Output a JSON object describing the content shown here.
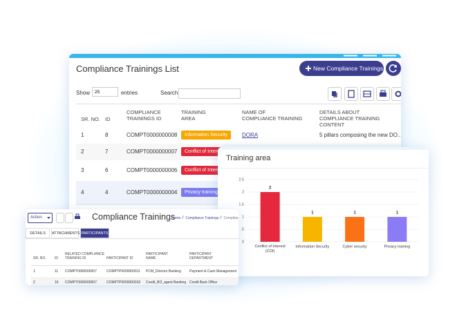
{
  "main_panel": {
    "title": "Compliance Trainings List",
    "new_button": "New Compliance Trainings",
    "show_label": "Show",
    "page_size": "25",
    "entries_label": "entries",
    "search_label": "Search",
    "table": {
      "headers": [
        "SR. NO.",
        "ID",
        "COMPLIANCE\nTRAININGS ID",
        "TRAINING\nAREA",
        "NAME OF\nCOMPLIANCE TRAINING",
        "DETAILS ABOUT\nCOMPLIANCE TRAINING CONTENT"
      ],
      "rows": [
        {
          "sr": 1,
          "id": 8,
          "training_id": "COMPT0000000008",
          "area": "Information Security",
          "name": "DORA",
          "details": "5 pillars composing the new DO..."
        },
        {
          "sr": 2,
          "id": 7,
          "training_id": "COMPT0000000007",
          "area": "Conflict of Interest"
        },
        {
          "sr": 3,
          "id": 6,
          "training_id": "COMPT0000000006",
          "area": "Conflict of Interest"
        },
        {
          "sr": 4,
          "id": 4,
          "training_id": "COMPT0000000004",
          "area": "Privacy training"
        }
      ]
    }
  },
  "chart_data": {
    "type": "bar",
    "title": "Training area",
    "categories": [
      "Conflict of Interest (COI)",
      "Information Security",
      "Cyber security",
      "Privacy training"
    ],
    "values": [
      2,
      1,
      1,
      1
    ],
    "colors": [
      "#e5283c",
      "#f7b500",
      "#f97316",
      "#8b7cf6"
    ],
    "ylim": [
      0,
      2.5
    ],
    "yticks": [
      0,
      {
        "value": 0.5,
        "label": ".5"
      },
      1,
      1.5,
      2,
      2.5
    ],
    "grid": true
  },
  "detail_panel": {
    "action_label": "Action",
    "title": "Compliance Trainings",
    "breadcrumb": [
      "Home",
      "Compliance Trainings",
      "Compliance Trainings"
    ],
    "tabs": [
      "DETAILS",
      "ATTACHMENTS",
      "PARTICIPANTS"
    ],
    "table": {
      "headers": [
        "SR. NO.",
        "ID",
        "RELATED COMPLIANCE\nTRAINING ID",
        "PARTICIPANT ID",
        "PARTICIPANT\nNAME",
        "PARTICIPANT\nDEPARTMENT"
      ],
      "rows": [
        [
          1,
          11,
          "COMPT0000000007",
          "COMPTP0000000011",
          "PCM_Director Banking",
          "Payment & Cash Management"
        ],
        [
          2,
          16,
          "COMPT0000000007",
          "COMPTP0000000016",
          "Credit_BO_agent Banking",
          "Credit Back Office"
        ]
      ]
    }
  }
}
